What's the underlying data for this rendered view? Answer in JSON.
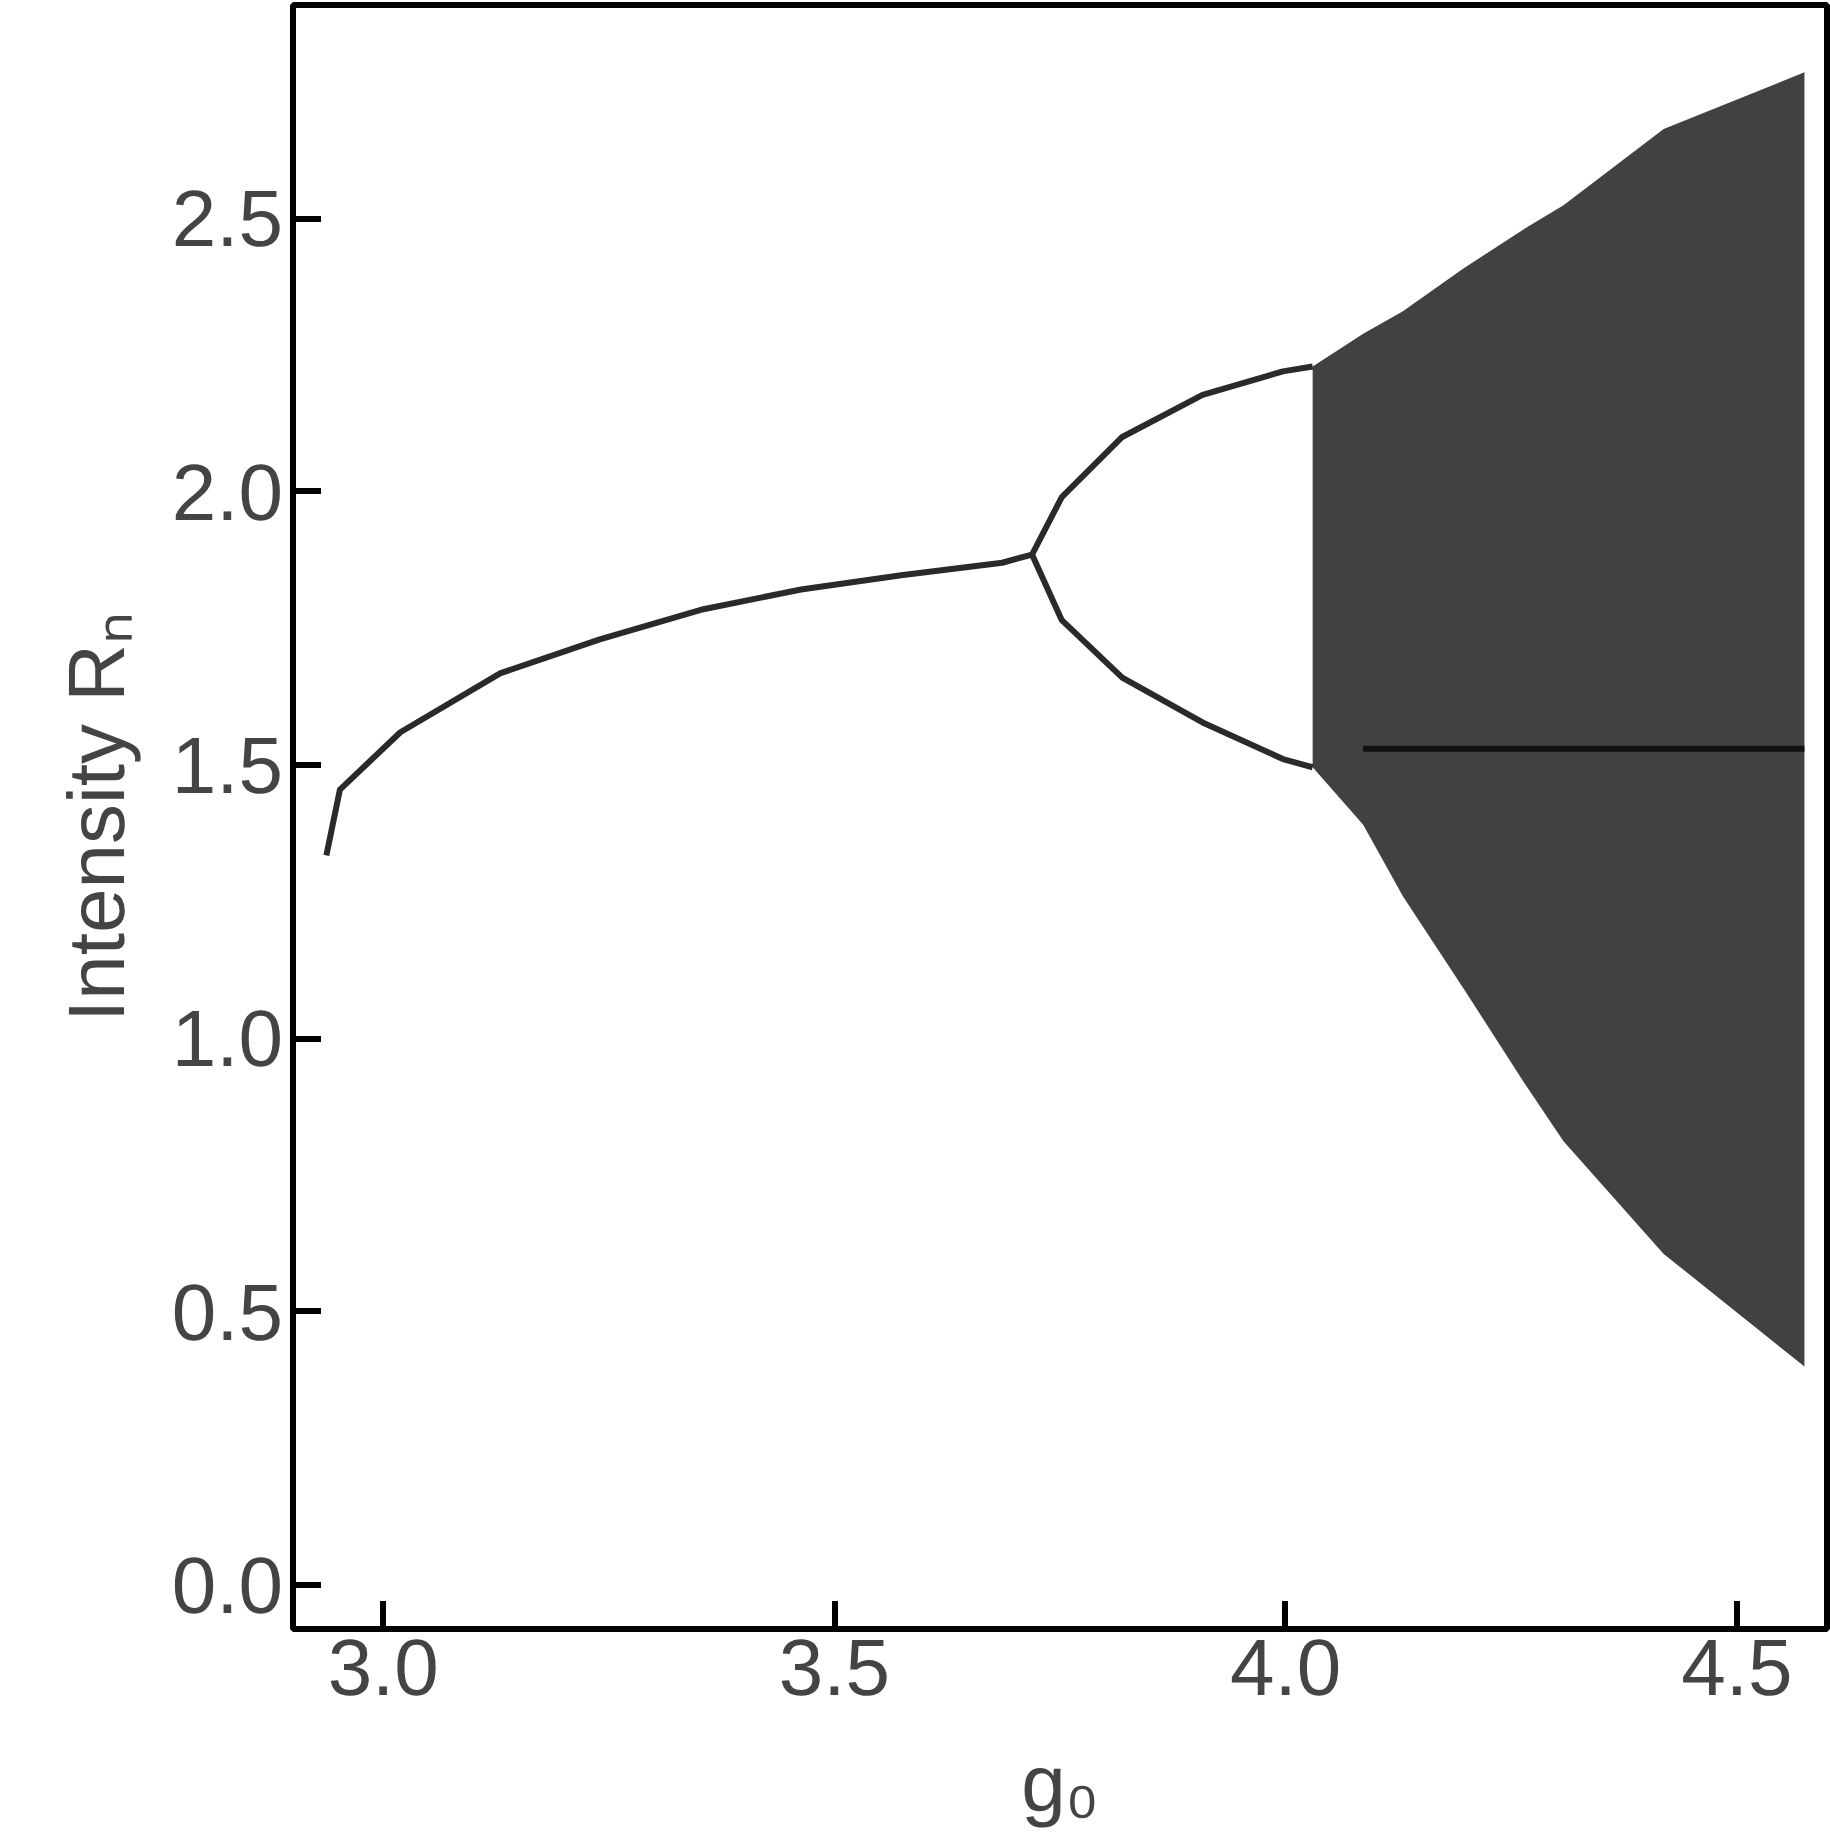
{
  "chart_data": {
    "type": "line",
    "xlabel": "g₀",
    "ylabel": "Intensity Rₙ",
    "xlim": [
      2.9,
      4.6
    ],
    "ylim": [
      -0.08,
      2.89
    ],
    "xticks": [
      {
        "value": 3,
        "label": "3.0"
      },
      3.5,
      {
        "value": 4,
        "label": "4.0"
      },
      4.5
    ],
    "yticks": [
      {
        "value": 0,
        "label": "0.0"
      },
      0.5,
      {
        "value": 1,
        "label": "1.0"
      },
      1.5,
      {
        "value": 2,
        "label": "2.0"
      },
      2.5
    ],
    "grid": false,
    "marker": "none",
    "line_style": "solid",
    "series": [
      {
        "color": "#2a2a2a",
        "x": [
          2.937,
          2.952,
          3.019,
          3.13,
          3.24,
          3.352,
          3.463,
          3.574,
          3.686,
          3.719
        ],
        "values": [
          1.335,
          1.455,
          1.56,
          1.668,
          1.73,
          1.784,
          1.821,
          1.847,
          1.87,
          1.885
        ]
      },
      {
        "color": "#2a2a2a",
        "x": [
          3.719,
          3.752,
          3.819,
          3.908,
          3.997,
          4.03
        ],
        "values": [
          1.885,
          1.99,
          2.1,
          2.177,
          2.22,
          2.229
        ]
      },
      {
        "color": "#2a2a2a",
        "x": [
          3.719,
          3.752,
          3.819,
          3.908,
          3.997,
          4.03
        ],
        "values": [
          1.885,
          1.765,
          1.66,
          1.578,
          1.511,
          1.496
        ]
      },
      {
        "color": "#111111",
        "x": [
          4.03,
          4.086,
          4.13,
          4.197,
          4.264,
          4.308,
          4.419,
          4.575
        ],
        "values": [
          null,
          1.53,
          1.53,
          1.53,
          1.53,
          1.53,
          1.53,
          1.53
        ],
        "upper": [
          2.229,
          2.289,
          2.33,
          2.408,
          2.48,
          2.524,
          2.663,
          2.767
        ],
        "lower": [
          1.496,
          1.391,
          1.26,
          1.092,
          0.92,
          0.812,
          0.606,
          0.4
        ]
      }
    ]
  }
}
